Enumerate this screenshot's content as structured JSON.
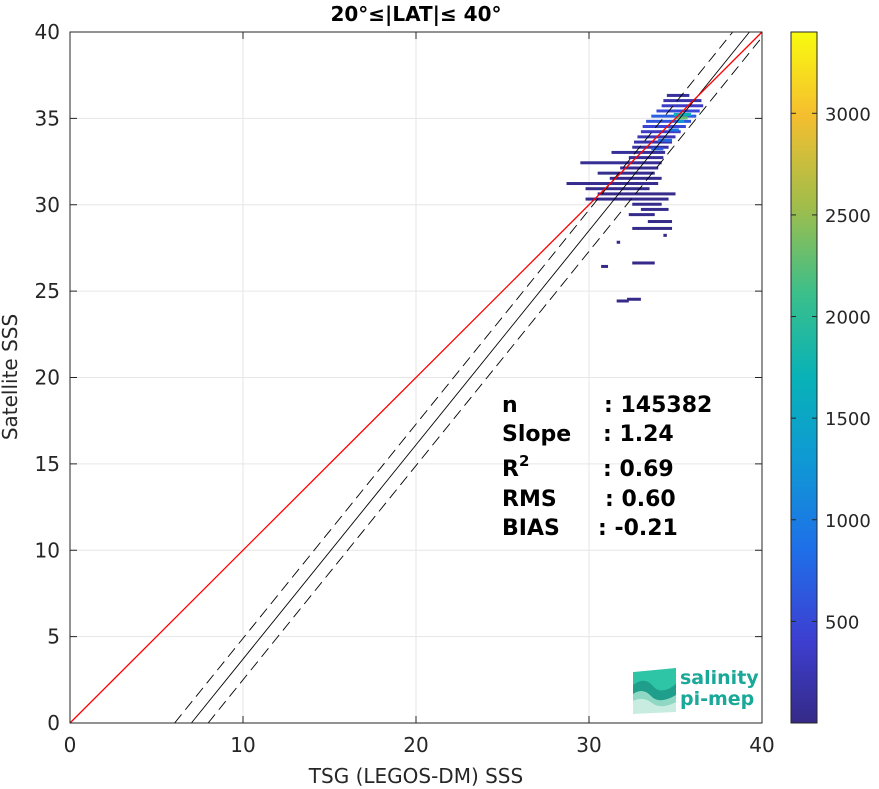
{
  "chart_data": {
    "type": "heatmap",
    "title": "20°≤|LAT|≤ 40°",
    "xlabel": "TSG (LEGOS-DM) SSS",
    "ylabel": "Satellite SSS",
    "xlim": [
      0,
      40
    ],
    "ylim": [
      0,
      40
    ],
    "xticks": [
      "0",
      "10",
      "20",
      "30",
      "40"
    ],
    "yticks": [
      "0",
      "5",
      "10",
      "15",
      "20",
      "25",
      "30",
      "35",
      "40"
    ],
    "grid": true,
    "colorbar": {
      "range": [
        0,
        3400
      ],
      "ticks": [
        "500",
        "1000",
        "1500",
        "2000",
        "2500",
        "3000"
      ],
      "colormap": "parula"
    },
    "lines": {
      "identity": {
        "slope": 1,
        "intercept": 0,
        "color": "#ff0000"
      },
      "regression": {
        "slope": 1.24,
        "intercept": -8.7,
        "color": "#000000"
      },
      "regression_upper": {
        "slope": 1.24,
        "intercept": -7.5,
        "color": "#000000",
        "style": "dashed"
      },
      "regression_lower": {
        "slope": 1.24,
        "intercept": -9.9,
        "color": "#000000",
        "style": "dashed"
      }
    },
    "density_segments": [
      {
        "x0": 34.5,
        "x1": 35.8,
        "y": 36.3,
        "c": 120
      },
      {
        "x0": 34.3,
        "x1": 36.5,
        "y": 36.0,
        "c": 200
      },
      {
        "x0": 34.2,
        "x1": 36.6,
        "y": 35.7,
        "c": 350
      },
      {
        "x0": 33.9,
        "x1": 36.4,
        "y": 35.4,
        "c": 500
      },
      {
        "x0": 33.6,
        "x1": 36.2,
        "y": 35.1,
        "c": 700
      },
      {
        "x0": 33.3,
        "x1": 35.9,
        "y": 34.8,
        "c": 600
      },
      {
        "x0": 33.1,
        "x1": 35.6,
        "y": 34.5,
        "c": 450
      },
      {
        "x0": 33.0,
        "x1": 35.3,
        "y": 34.2,
        "c": 350
      },
      {
        "x0": 32.8,
        "x1": 35.0,
        "y": 33.9,
        "c": 250
      },
      {
        "x0": 32.6,
        "x1": 34.8,
        "y": 33.6,
        "c": 200
      },
      {
        "x0": 32.5,
        "x1": 34.6,
        "y": 33.3,
        "c": 150
      },
      {
        "x0": 31.3,
        "x1": 34.4,
        "y": 33.0,
        "c": 100
      },
      {
        "x0": 32.3,
        "x1": 34.3,
        "y": 32.7,
        "c": 90
      },
      {
        "x0": 29.5,
        "x1": 34.2,
        "y": 32.4,
        "c": 70
      },
      {
        "x0": 31.8,
        "x1": 34.0,
        "y": 32.1,
        "c": 60
      },
      {
        "x0": 30.5,
        "x1": 33.8,
        "y": 31.8,
        "c": 50
      },
      {
        "x0": 31.2,
        "x1": 34.2,
        "y": 31.5,
        "c": 40
      },
      {
        "x0": 28.7,
        "x1": 34.0,
        "y": 31.2,
        "c": 40
      },
      {
        "x0": 29.8,
        "x1": 33.5,
        "y": 30.9,
        "c": 30
      },
      {
        "x0": 30.5,
        "x1": 35.0,
        "y": 30.6,
        "c": 30
      },
      {
        "x0": 29.8,
        "x1": 34.6,
        "y": 30.3,
        "c": 25
      },
      {
        "x0": 32.5,
        "x1": 34.2,
        "y": 30.0,
        "c": 20
      },
      {
        "x0": 33.0,
        "x1": 34.6,
        "y": 29.7,
        "c": 15
      },
      {
        "x0": 32.3,
        "x1": 33.8,
        "y": 29.4,
        "c": 15
      },
      {
        "x0": 33.4,
        "x1": 34.8,
        "y": 29.0,
        "c": 12
      },
      {
        "x0": 32.5,
        "x1": 34.8,
        "y": 28.6,
        "c": 10
      },
      {
        "x0": 34.3,
        "x1": 34.5,
        "y": 28.2,
        "c": 10
      },
      {
        "x0": 31.6,
        "x1": 31.8,
        "y": 27.8,
        "c": 8
      },
      {
        "x0": 32.5,
        "x1": 33.8,
        "y": 26.6,
        "c": 8
      },
      {
        "x0": 30.7,
        "x1": 31.1,
        "y": 26.4,
        "c": 8
      },
      {
        "x0": 32.2,
        "x1": 33.0,
        "y": 24.5,
        "c": 6
      },
      {
        "x0": 31.6,
        "x1": 32.3,
        "y": 24.4,
        "c": 6
      },
      {
        "x0": 34.9,
        "x1": 35.9,
        "y": 35.2,
        "c": 1700
      },
      {
        "x0": 35.0,
        "x1": 35.7,
        "y": 35.0,
        "c": 2300
      },
      {
        "x0": 35.1,
        "x1": 35.5,
        "y": 34.8,
        "c": 1300
      },
      {
        "x0": 34.6,
        "x1": 35.2,
        "y": 34.3,
        "c": 900
      },
      {
        "x0": 34.0,
        "x1": 34.8,
        "y": 33.7,
        "c": 800
      },
      {
        "x0": 33.6,
        "x1": 34.3,
        "y": 33.2,
        "c": 700
      }
    ]
  },
  "stats": {
    "n_label": "n",
    "n_value": ": 145382",
    "slope_label": "Slope",
    "slope_value": ": 1.24",
    "r2_label": "R",
    "r2_sup": "2",
    "r2_value": ": 0.69",
    "rms_label": "RMS",
    "rms_value": ": 0.60",
    "bias_label": "BIAS",
    "bias_value": ": -0.21"
  },
  "logo": {
    "line1": "salinity",
    "line2": "pi-mep"
  }
}
